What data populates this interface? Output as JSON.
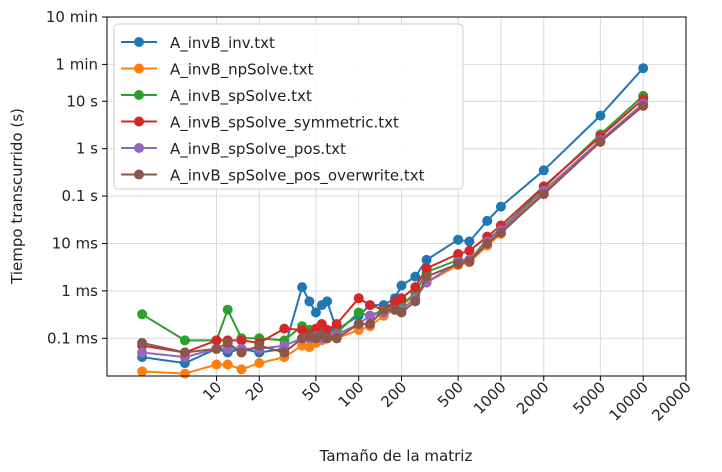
{
  "chart_data": {
    "type": "line",
    "xlabel": "Tamaño de la matriz",
    "ylabel": "Tiempo transcurrido (s)",
    "xscale": "log",
    "yscale": "log",
    "xlim": [
      1.7,
      20000
    ],
    "ylim": [
      1.6e-05,
      600
    ],
    "grid": true,
    "legend_position": "top-left",
    "x_ticks": [
      {
        "value": 10,
        "label": "10"
      },
      {
        "value": 20,
        "label": "20"
      },
      {
        "value": 50,
        "label": "50"
      },
      {
        "value": 100,
        "label": "100"
      },
      {
        "value": 200,
        "label": "200"
      },
      {
        "value": 500,
        "label": "500"
      },
      {
        "value": 1000,
        "label": "1000"
      },
      {
        "value": 2000,
        "label": "2000"
      },
      {
        "value": 5000,
        "label": "5000"
      },
      {
        "value": 10000,
        "label": "10000"
      },
      {
        "value": 20000,
        "label": "20000"
      }
    ],
    "y_ticks": [
      {
        "value": 0.0001,
        "label": "0.1 ms"
      },
      {
        "value": 0.001,
        "label": "1 ms"
      },
      {
        "value": 0.01,
        "label": "10 ms"
      },
      {
        "value": 0.1,
        "label": "0.1 s"
      },
      {
        "value": 1,
        "label": "1 s"
      },
      {
        "value": 10,
        "label": "10 s"
      },
      {
        "value": 60,
        "label": "1 min"
      },
      {
        "value": 600,
        "label": "10 min"
      }
    ],
    "series": [
      {
        "name": "A_invB_inv.txt",
        "color": "#1f77b4",
        "x": [
          3,
          6,
          10,
          12,
          15,
          20,
          30,
          40,
          45,
          50,
          55,
          60,
          70,
          100,
          120,
          150,
          180,
          200,
          250,
          300,
          500,
          600,
          800,
          1000,
          2000,
          5000,
          10000
        ],
        "y": [
          4e-05,
          3e-05,
          6e-05,
          5e-05,
          6e-05,
          5e-05,
          6e-05,
          0.0012,
          0.0006,
          0.00035,
          0.0005,
          0.0006,
          0.00015,
          0.0003,
          0.0005,
          0.0005,
          0.0007,
          0.0013,
          0.002,
          0.0045,
          0.012,
          0.011,
          0.03,
          0.06,
          0.35,
          5,
          50
        ]
      },
      {
        "name": "A_invB_npSolve.txt",
        "color": "#ff7f0e",
        "x": [
          3,
          6,
          10,
          12,
          15,
          20,
          30,
          40,
          45,
          50,
          55,
          60,
          70,
          100,
          120,
          150,
          180,
          200,
          250,
          300,
          500,
          600,
          800,
          1000,
          2000,
          5000,
          10000
        ],
        "y": [
          2e-05,
          1.8e-05,
          2.8e-05,
          2.8e-05,
          2.2e-05,
          3e-05,
          4e-05,
          7e-05,
          6.5e-05,
          8e-05,
          9e-05,
          0.0001,
          0.0001,
          0.00015,
          0.00018,
          0.0003,
          0.0004,
          0.0005,
          0.0008,
          0.0015,
          0.0035,
          0.004,
          0.009,
          0.016,
          0.12,
          1.4,
          8.5
        ]
      },
      {
        "name": "A_invB_spSolve.txt",
        "color": "#2ca02c",
        "x": [
          3,
          6,
          10,
          12,
          15,
          20,
          30,
          40,
          45,
          50,
          55,
          60,
          70,
          100,
          120,
          150,
          180,
          200,
          250,
          300,
          500,
          600,
          800,
          1000,
          2000,
          5000,
          10000
        ],
        "y": [
          0.00032,
          9e-05,
          9e-05,
          0.0004,
          0.0001,
          0.0001,
          9e-05,
          0.00018,
          0.00015,
          0.00012,
          0.00013,
          0.00011,
          0.00013,
          0.00035,
          0.0003,
          0.0004,
          0.0005,
          0.0005,
          0.0009,
          0.0025,
          0.0045,
          0.0045,
          0.012,
          0.02,
          0.15,
          2,
          13
        ]
      },
      {
        "name": "A_invB_spSolve_symmetric.txt",
        "color": "#d62728",
        "x": [
          3,
          6,
          10,
          12,
          15,
          20,
          30,
          40,
          45,
          50,
          55,
          60,
          70,
          100,
          120,
          150,
          180,
          200,
          250,
          300,
          500,
          600,
          800,
          1000,
          2000,
          5000,
          10000
        ],
        "y": [
          7e-05,
          5e-05,
          9e-05,
          9e-05,
          9e-05,
          8e-05,
          0.00016,
          0.00015,
          0.00012,
          0.00016,
          0.0002,
          0.00015,
          0.0002,
          0.0007,
          0.0005,
          0.0004,
          0.0006,
          0.0007,
          0.0012,
          0.003,
          0.006,
          0.007,
          0.014,
          0.024,
          0.16,
          1.8,
          11
        ]
      },
      {
        "name": "A_invB_spSolve_pos.txt",
        "color": "#9467bd",
        "x": [
          3,
          6,
          10,
          12,
          15,
          20,
          30,
          40,
          45,
          50,
          55,
          60,
          70,
          100,
          120,
          150,
          180,
          200,
          250,
          300,
          500,
          600,
          800,
          1000,
          2000,
          5000,
          10000
        ],
        "y": [
          5e-05,
          4e-05,
          6e-05,
          6e-05,
          6e-05,
          6e-05,
          7e-05,
          0.0001,
          0.0001,
          0.00011,
          0.0001,
          0.0001,
          0.00012,
          0.0002,
          0.0003,
          0.00035,
          0.0004,
          0.0004,
          0.0007,
          0.0015,
          0.004,
          0.0045,
          0.011,
          0.019,
          0.13,
          1.5,
          9
        ]
      },
      {
        "name": "A_invB_spSolve_pos_overwrite.txt",
        "color": "#8c564b",
        "x": [
          3,
          6,
          10,
          12,
          15,
          20,
          30,
          40,
          45,
          50,
          55,
          60,
          70,
          100,
          120,
          150,
          180,
          200,
          250,
          300,
          500,
          600,
          800,
          1000,
          2000,
          5000,
          10000
        ],
        "y": [
          8e-05,
          5e-05,
          6e-05,
          8e-05,
          5e-05,
          7e-05,
          5e-05,
          0.0001,
          0.00011,
          0.0001,
          0.00012,
          0.0001,
          0.0001,
          0.0002,
          0.0002,
          0.0004,
          0.0004,
          0.00035,
          0.0006,
          0.002,
          0.0037,
          0.0042,
          0.01,
          0.017,
          0.11,
          1.4,
          8
        ]
      }
    ]
  }
}
